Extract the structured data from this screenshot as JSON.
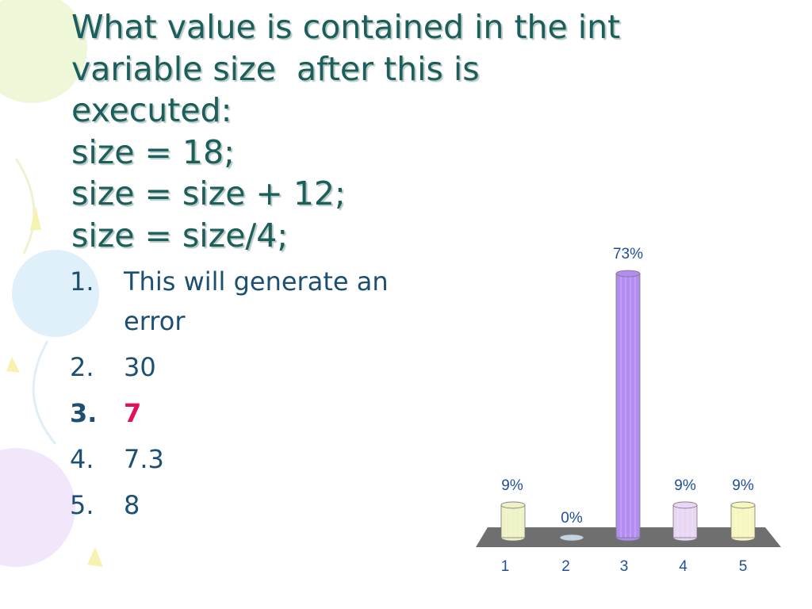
{
  "title": [
    "What value is contained in the int",
    "variable size  after this is",
    "executed:",
    "size = 18;",
    "size = size + 12;",
    "size = size/4;"
  ],
  "options": [
    {
      "number": "1.",
      "text": "This will generate an error"
    },
    {
      "number": "2.",
      "text": "30"
    },
    {
      "number": "3.",
      "text": "7"
    },
    {
      "number": "4.",
      "text": "7.3"
    },
    {
      "number": "5.",
      "text": "8"
    }
  ],
  "chart_data": {
    "type": "bar",
    "categories": [
      "1",
      "2",
      "3",
      "4",
      "5"
    ],
    "values": [
      9,
      0,
      73,
      9,
      9
    ],
    "value_labels": [
      "9%",
      "0%",
      "73%",
      "9%",
      "9%"
    ],
    "colors": [
      "#eef2c4",
      "#c4d4e0",
      "#b28cf0",
      "#e8d6f2",
      "#f8f6c0"
    ]
  }
}
